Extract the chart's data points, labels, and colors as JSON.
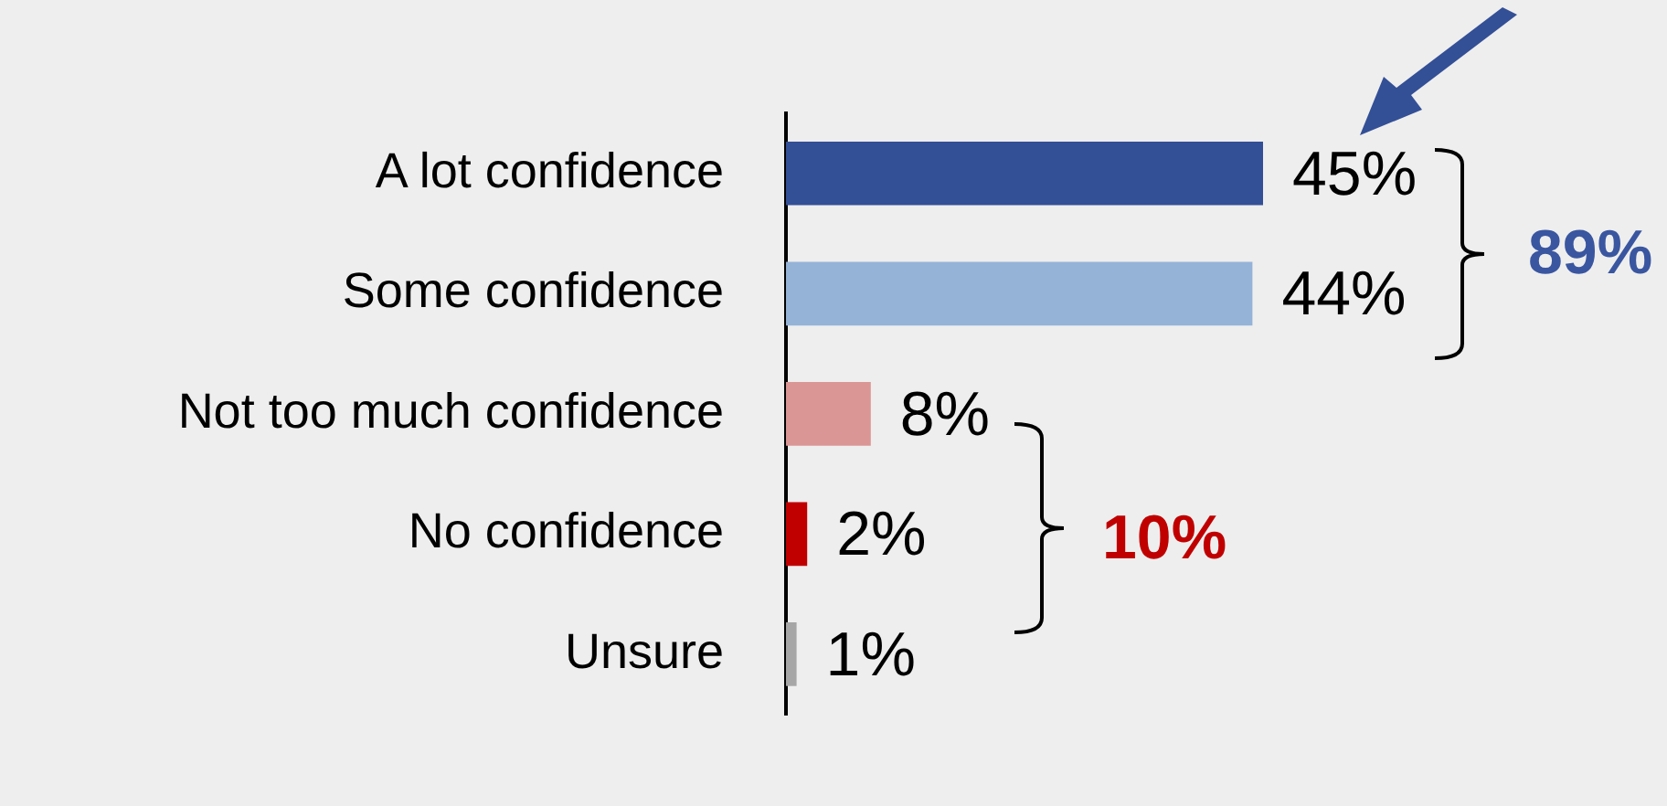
{
  "chart_data": {
    "type": "bar",
    "orientation": "horizontal",
    "categories": [
      "A lot confidence",
      "Some confidence",
      "Not too much confidence",
      "No confidence",
      "Unsure"
    ],
    "values": [
      45,
      44,
      8,
      2,
      1
    ],
    "value_labels": [
      "45%",
      "44%",
      "8%",
      "2%",
      "1%"
    ],
    "colors": [
      "#334f96",
      "#95b3d7",
      "#da9694",
      "#c00000",
      "#a6a6a6"
    ],
    "annotations": [
      "89%",
      "10%"
    ],
    "legend": false
  }
}
